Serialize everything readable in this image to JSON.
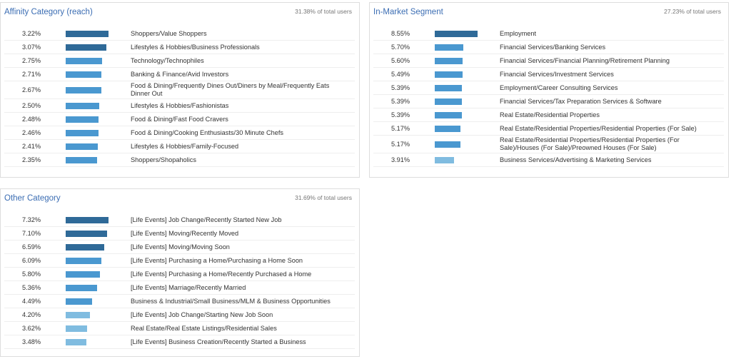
{
  "panels": [
    {
      "title": "Affinity Category (reach)",
      "share": "31.38% of total users",
      "rows": [
        {
          "value": 3.22,
          "value_label": "3.22%",
          "label": "Shoppers/Value Shoppers"
        },
        {
          "value": 3.07,
          "value_label": "3.07%",
          "label": "Lifestyles & Hobbies/Business Professionals"
        },
        {
          "value": 2.75,
          "value_label": "2.75%",
          "label": "Technology/Technophiles"
        },
        {
          "value": 2.71,
          "value_label": "2.71%",
          "label": "Banking & Finance/Avid Investors"
        },
        {
          "value": 2.67,
          "value_label": "2.67%",
          "label": "Food & Dining/Frequently Dines Out/Diners by Meal/Frequently Eats Dinner Out"
        },
        {
          "value": 2.5,
          "value_label": "2.50%",
          "label": "Lifestyles & Hobbies/Fashionistas"
        },
        {
          "value": 2.48,
          "value_label": "2.48%",
          "label": "Food & Dining/Fast Food Cravers"
        },
        {
          "value": 2.46,
          "value_label": "2.46%",
          "label": "Food & Dining/Cooking Enthusiasts/30 Minute Chefs"
        },
        {
          "value": 2.41,
          "value_label": "2.41%",
          "label": "Lifestyles & Hobbies/Family-Focused"
        },
        {
          "value": 2.35,
          "value_label": "2.35%",
          "label": "Shoppers/Shopaholics"
        }
      ]
    },
    {
      "title": "In-Market Segment",
      "share": "27.23% of total users",
      "rows": [
        {
          "value": 8.55,
          "value_label": "8.55%",
          "label": "Employment"
        },
        {
          "value": 5.7,
          "value_label": "5.70%",
          "label": "Financial Services/Banking Services"
        },
        {
          "value": 5.6,
          "value_label": "5.60%",
          "label": "Financial Services/Financial Planning/Retirement Planning"
        },
        {
          "value": 5.49,
          "value_label": "5.49%",
          "label": "Financial Services/Investment Services"
        },
        {
          "value": 5.39,
          "value_label": "5.39%",
          "label": "Employment/Career Consulting Services"
        },
        {
          "value": 5.39,
          "value_label": "5.39%",
          "label": "Financial Services/Tax Preparation Services & Software"
        },
        {
          "value": 5.39,
          "value_label": "5.39%",
          "label": "Real Estate/Residential Properties"
        },
        {
          "value": 5.17,
          "value_label": "5.17%",
          "label": "Real Estate/Residential Properties/Residential Properties (For Sale)"
        },
        {
          "value": 5.17,
          "value_label": "5.17%",
          "label": "Real Estate/Residential Properties/Residential Properties (For Sale)/Houses (For Sale)/Preowned Houses (For Sale)"
        },
        {
          "value": 3.91,
          "value_label": "3.91%",
          "label": "Business Services/Advertising & Marketing Services"
        }
      ]
    },
    {
      "title": "Other Category",
      "share": "31.69% of total users",
      "rows": [
        {
          "value": 7.32,
          "value_label": "7.32%",
          "label": "[Life Events] Job Change/Recently Started New Job"
        },
        {
          "value": 7.1,
          "value_label": "7.10%",
          "label": "[Life Events] Moving/Recently Moved"
        },
        {
          "value": 6.59,
          "value_label": "6.59%",
          "label": "[Life Events] Moving/Moving Soon"
        },
        {
          "value": 6.09,
          "value_label": "6.09%",
          "label": "[Life Events] Purchasing a Home/Purchasing a Home Soon"
        },
        {
          "value": 5.8,
          "value_label": "5.80%",
          "label": "[Life Events] Purchasing a Home/Recently Purchased a Home"
        },
        {
          "value": 5.36,
          "value_label": "5.36%",
          "label": "[Life Events] Marriage/Recently Married"
        },
        {
          "value": 4.49,
          "value_label": "4.49%",
          "label": "Business & Industrial/Small Business/MLM & Business Opportunities"
        },
        {
          "value": 4.2,
          "value_label": "4.20%",
          "label": "[Life Events] Job Change/Starting New Job Soon"
        },
        {
          "value": 3.62,
          "value_label": "3.62%",
          "label": "Real Estate/Real Estate Listings/Residential Sales"
        },
        {
          "value": 3.48,
          "value_label": "3.48%",
          "label": "[Life Events] Business Creation/Recently Started a Business"
        }
      ]
    }
  ]
}
